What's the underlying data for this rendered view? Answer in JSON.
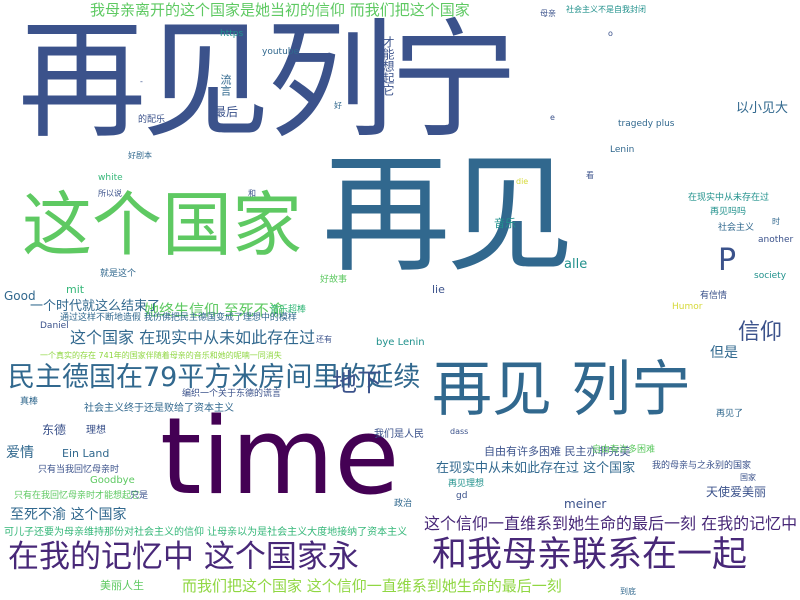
{
  "colors": {
    "background": "#ffffff",
    "navy": "#3b528b",
    "blue": "#31688e",
    "teal": "#21918c",
    "green": "#35b779",
    "lightgreen": "#5ec962",
    "yellowgreen": "#90d743",
    "yellow": "#d6d93b",
    "purple": "#440154",
    "indigo": "#482878"
  },
  "words": [
    "再见列宁",
    "再见",
    "time",
    "这个国家",
    "再见 列宁",
    "民主德国在79平方米房间里的延续",
    "在我的记忆中 这个国家永",
    "和我母亲联系在一起",
    "这个信仰一直维系到她生命的最后一刻 在我的记忆中",
    "我母亲离开的这个国家是她当初的信仰 而我们把这个国家",
    "而我们把这个国家 这个信仰一直维系到她生命的最后一刻",
    "地下",
    "信仰",
    "P",
    "这个国家 在现实中从未如此存在过",
    "她终生信仰 至死不渝",
    "一个时代就这么结束了",
    "在现实中从未如此存在过 这个国家",
    "至死不渝 这个国家",
    "可儿子还要为母亲维持那份对社会主义的信仰 让母亲以为是社会主义大度地接纳了资本主义",
    "但是",
    "以小见大",
    "才能想起它",
    "流言",
    "最后",
    "音乐",
    "alle",
    "lie",
    "Good",
    "mit",
    "Daniel",
    "东德",
    "理想",
    "爱情",
    "Ein Land",
    "meiner",
    "自由有许多困难 民主亦非完美",
    "天使爱美丽",
    "美丽人生",
    "政治",
    "bye Lenin",
    "youtube",
    "https",
    "tragedy plus",
    "Lenin",
    "社会主义终于还是败给了资本主义",
    "我们是人民",
    "Goodbye",
    "就是这个",
    "white",
    "再见了",
    "再见吗吗",
    "在现实中从未存在过",
    "社会主义",
    "society",
    "another",
    "有信情",
    "Humor",
    "音乐超棒",
    "好故事",
    "真棒",
    "我的母亲与之永别的国家",
    "自由有许多困难",
    "只有当我回忆母亲时",
    "只有在我回忆母亲时才能想起它",
    "只是",
    "通过这样不断地造假 我仿佛把民主德国变成了理想中的模样",
    "一个真实的存在 741年的国家伴随着母亲的音乐和她的呢喃一同消失",
    "编织一个关于东德的谎言",
    "母亲",
    "的配乐",
    "好剧本",
    "所以说",
    "社会主义不是自我封闭",
    "再见理想",
    "到底",
    "gd",
    "dass",
    "die",
    "时",
    "和",
    "还有",
    "看",
    "好",
    "国家",
    "e",
    "o",
    "-"
  ]
}
